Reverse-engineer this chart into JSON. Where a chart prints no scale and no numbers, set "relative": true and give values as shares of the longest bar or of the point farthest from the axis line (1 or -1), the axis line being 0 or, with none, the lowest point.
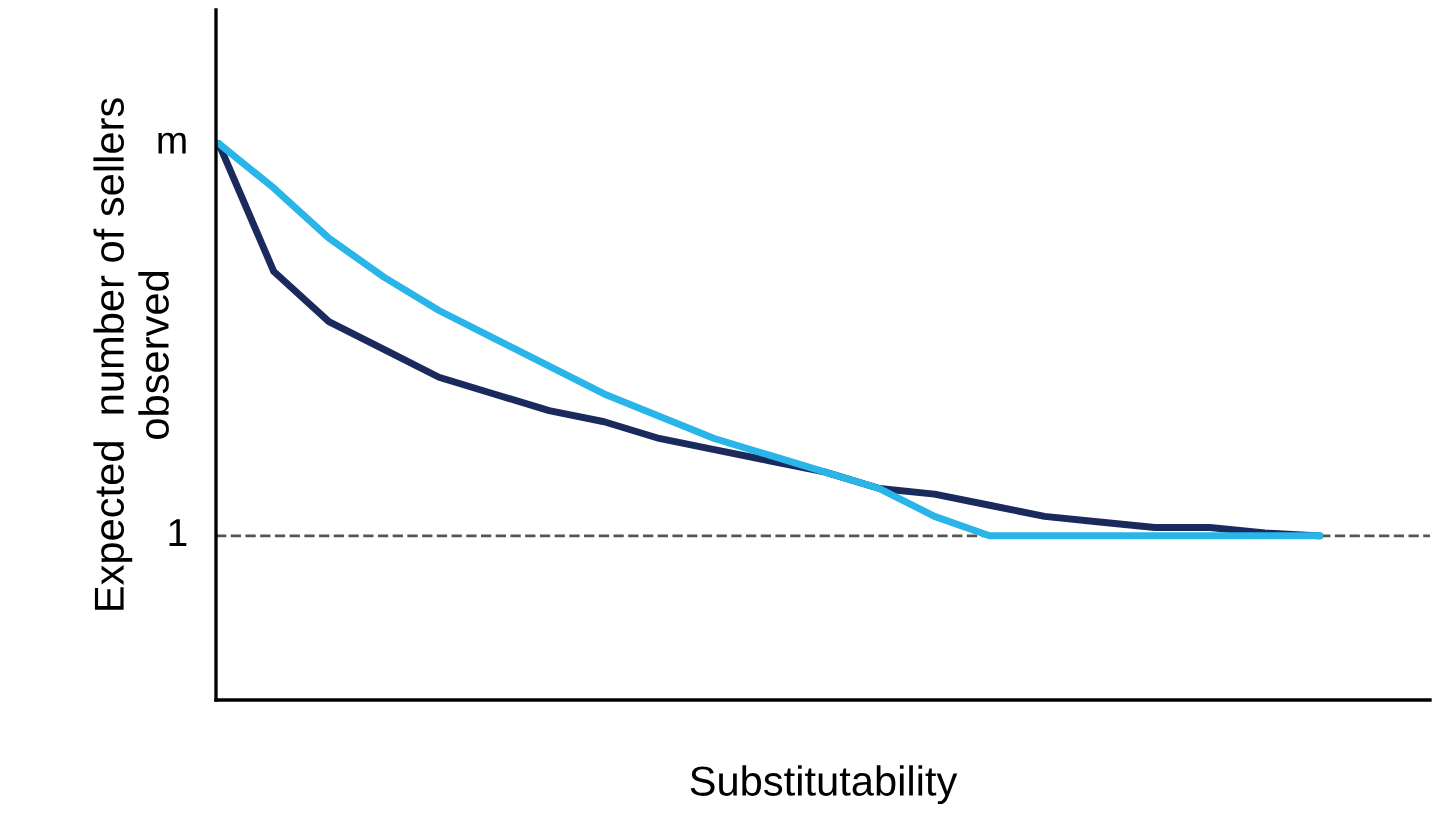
{
  "chart_data": {
    "type": "line",
    "relative": true,
    "xlabel": "Substitutability",
    "ylabel": "Expected  number of sellers\nobserved",
    "categories": [
      null,
      null,
      null,
      null,
      null,
      null,
      null,
      null,
      null,
      null,
      null,
      null,
      null,
      null,
      null,
      null,
      null,
      null,
      null,
      null,
      null,
      null,
      null
    ],
    "series": [
      {
        "color": "#1b2a5c",
        "values": [
          1.0,
          0.77,
          0.68,
          0.63,
          0.58,
          0.55,
          0.52,
          0.5,
          0.47,
          0.45,
          0.43,
          0.41,
          0.38,
          0.37,
          0.35,
          0.33,
          0.32,
          0.31,
          0.31,
          0.3,
          0.295,
          null,
          null
        ]
      },
      {
        "color": "#29b5e8",
        "values": [
          1.0,
          0.92,
          0.83,
          0.76,
          0.7,
          0.65,
          0.6,
          0.55,
          0.51,
          0.47,
          0.44,
          0.41,
          0.38,
          0.33,
          0.295,
          0.295,
          0.295,
          0.295,
          0.295,
          0.295,
          0.295,
          null,
          null
        ]
      }
    ],
    "ref_lines": [
      {
        "axis": "y",
        "value": 0.295,
        "color": "#555555",
        "line_style": "dashed"
      }
    ],
    "annotations": [
      "m",
      "1"
    ],
    "grid": false,
    "legend": false,
    "marker": "none",
    "line_style": "solid"
  }
}
